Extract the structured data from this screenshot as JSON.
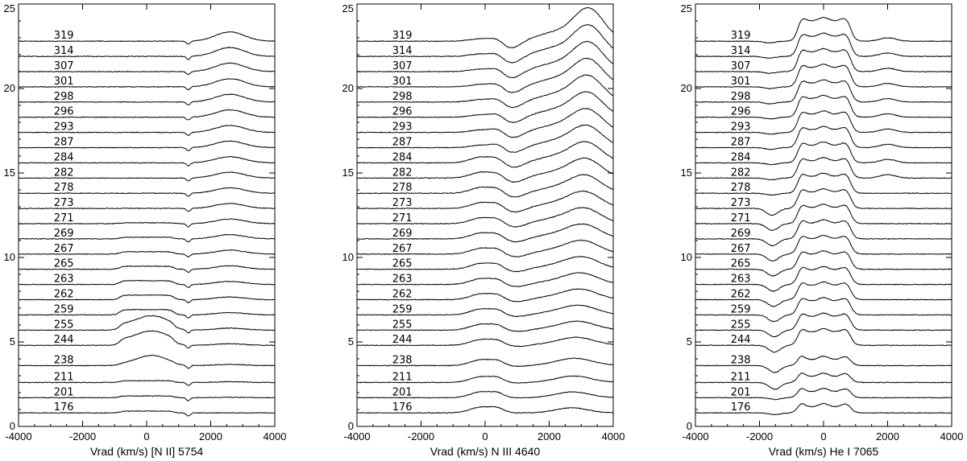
{
  "chart_data": [
    {
      "type": "line",
      "panel": "left",
      "xlabel": "Vrad (km/s) [N II] 5754",
      "xlim": [
        -4000,
        4000
      ],
      "ylim": [
        0,
        25
      ],
      "xticks": [
        "-4000",
        "-2000",
        "0",
        "2000",
        "4000"
      ],
      "yticks": [
        "0",
        "5",
        "10",
        "15",
        "20",
        "25"
      ],
      "epochs": [
        "319",
        "314",
        "307",
        "301",
        "298",
        "296",
        "293",
        "287",
        "284",
        "282",
        "278",
        "273",
        "271",
        "269",
        "267",
        "265",
        "263",
        "262",
        "259",
        "255",
        "244",
        "238",
        "211",
        "201",
        "176"
      ],
      "offsets": [
        22.8,
        21.9,
        21.0,
        20.1,
        19.2,
        18.3,
        17.4,
        16.5,
        15.6,
        14.7,
        13.8,
        12.9,
        12.0,
        11.1,
        10.2,
        9.3,
        8.4,
        7.5,
        6.6,
        5.7,
        4.8,
        3.6,
        2.6,
        1.7,
        0.8
      ],
      "line_center_kms": 0
    },
    {
      "type": "line",
      "panel": "middle",
      "xlabel": "Vrad (km/s) N III 4640",
      "xlim": [
        -4000,
        4000
      ],
      "ylim": [
        0,
        25
      ],
      "xticks": [
        "-4000",
        "-2000",
        "0",
        "2000",
        "4000"
      ],
      "yticks": [
        "0",
        "5",
        "10",
        "15",
        "20",
        "25"
      ],
      "epochs": [
        "319",
        "314",
        "307",
        "301",
        "298",
        "296",
        "293",
        "287",
        "284",
        "282",
        "278",
        "273",
        "271",
        "269",
        "267",
        "265",
        "263",
        "262",
        "259",
        "255",
        "244",
        "238",
        "211",
        "201",
        "176"
      ],
      "offsets": [
        22.8,
        21.9,
        21.0,
        20.1,
        19.2,
        18.3,
        17.4,
        16.5,
        15.6,
        14.7,
        13.8,
        12.9,
        12.0,
        11.1,
        10.2,
        9.3,
        8.4,
        7.5,
        6.6,
        5.7,
        4.8,
        3.6,
        2.6,
        1.7,
        0.8
      ],
      "line_center_kms": 0
    },
    {
      "type": "line",
      "panel": "right",
      "xlabel": "Vrad (km/s) He I 7065",
      "xlim": [
        -4000,
        4000
      ],
      "ylim": [
        0,
        25
      ],
      "xticks": [
        "-4000",
        "-2000",
        "0",
        "2000",
        "4000"
      ],
      "yticks": [
        "0",
        "5",
        "10",
        "15",
        "20",
        "25"
      ],
      "epochs": [
        "319",
        "314",
        "307",
        "301",
        "298",
        "296",
        "293",
        "287",
        "284",
        "282",
        "278",
        "273",
        "271",
        "269",
        "267",
        "265",
        "263",
        "262",
        "259",
        "255",
        "244",
        "238",
        "211",
        "201",
        "176"
      ],
      "offsets": [
        22.8,
        21.9,
        21.0,
        20.1,
        19.2,
        18.3,
        17.4,
        16.5,
        15.6,
        14.7,
        13.8,
        12.9,
        12.0,
        11.1,
        10.2,
        9.3,
        8.4,
        7.5,
        6.6,
        5.7,
        4.8,
        3.6,
        2.6,
        1.7,
        0.8
      ],
      "line_center_kms": 0
    }
  ]
}
